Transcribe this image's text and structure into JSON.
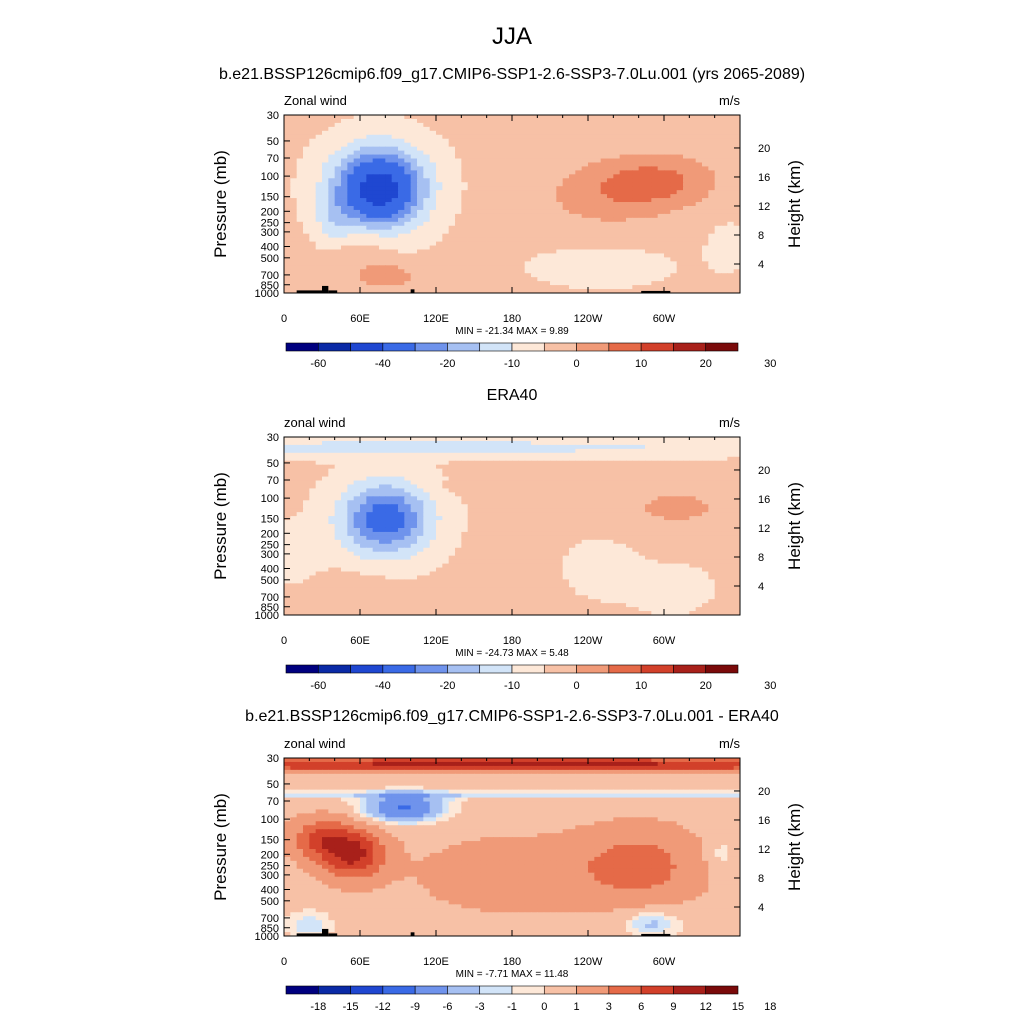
{
  "page": {
    "season": "JJA",
    "subtitle": "b.e21.BSSP126cmip6.f09_g17.CMIP6-SSP1-2.6-SSP3-7.0Lu.001 (yrs 2065-2089)"
  },
  "colors": {
    "model_palette": [
      "#00007f",
      "#0a2aa6",
      "#1f47d1",
      "#3a6ae6",
      "#6f93ec",
      "#a6c0f2",
      "#d2e4f8",
      "#fde8d8",
      "#f7c1a6",
      "#f09a78",
      "#e56a48",
      "#d2402a",
      "#a8201a",
      "#7a0a0a"
    ],
    "diff_palette": [
      "#00007f",
      "#0a2aa6",
      "#1f47d1",
      "#3a6ae6",
      "#6f93ec",
      "#a6c0f2",
      "#d2e4f8",
      "#fde8d8",
      "#f7c1a6",
      "#f09a78",
      "#e56a48",
      "#d2402a",
      "#a8201a",
      "#7a0a0a"
    ],
    "terrain": "#000000"
  },
  "chart_data": [
    {
      "type": "heatmap",
      "panel_title": "",
      "left_label": "Zonal wind",
      "right_label": "m/s",
      "ylabel": "Pressure (mb)",
      "y2label": "Height (km)",
      "x_ticks": [
        "0",
        "60E",
        "120E",
        "180",
        "120W",
        "60W"
      ],
      "x_range": [
        0,
        360
      ],
      "y_ticks": [
        "30",
        "50",
        "70",
        "100",
        "150",
        "200",
        "250",
        "300",
        "400",
        "500",
        "700",
        "850",
        "1000"
      ],
      "y_tick_values": [
        30,
        50,
        70,
        100,
        150,
        200,
        250,
        300,
        400,
        500,
        700,
        850,
        1000
      ],
      "y_range": [
        1000,
        30
      ],
      "y_scale": "log",
      "y2_ticks": [
        "20",
        "16",
        "12",
        "8",
        "4"
      ],
      "y2_tick_values": [
        20,
        16,
        12,
        8,
        4
      ],
      "stats": "MIN = -21.34  MAX =   9.89",
      "colorbar_levels": [
        -70,
        -60,
        -50,
        -40,
        -30,
        -20,
        -15,
        -10,
        -5,
        0,
        5,
        10,
        15,
        20,
        25,
        30
      ],
      "colorbar_labels": [
        "-60",
        "-40",
        "-20",
        "-10",
        "0",
        "10",
        "20",
        "30"
      ],
      "background_value": 1,
      "features": [
        {
          "lon": 75,
          "p": 120,
          "value": -21.34,
          "extent_lon": 48,
          "extent_p": 1.0
        },
        {
          "lon": 75,
          "p": 140,
          "value": -15,
          "extent_lon": 40,
          "extent_p": 0.9
        },
        {
          "lon": 40,
          "p": 260,
          "value": -6,
          "extent_lon": 20,
          "extent_p": 0.6
        },
        {
          "lon": 295,
          "p": 110,
          "value": 9.89,
          "extent_lon": 60,
          "extent_p": 0.7
        },
        {
          "lon": 250,
          "p": 150,
          "value": 6,
          "extent_lon": 65,
          "extent_p": 0.8
        },
        {
          "lon": 80,
          "p": 720,
          "value": 8,
          "extent_lon": 30,
          "extent_p": 0.3
        },
        {
          "lon": 60,
          "p": 400,
          "value": 4,
          "extent_lon": 35,
          "extent_p": 0.6
        },
        {
          "lon": 250,
          "p": 600,
          "value": -3,
          "extent_lon": 70,
          "extent_p": 0.5
        },
        {
          "lon": 350,
          "p": 400,
          "value": -3,
          "extent_lon": 20,
          "extent_p": 0.6
        }
      ],
      "terrain": [
        [
          10,
          30,
          1000,
          950
        ],
        [
          30,
          35,
          1000,
          870
        ],
        [
          35,
          42,
          1000,
          950
        ],
        [
          100,
          103,
          1000,
          930
        ],
        [
          282,
          305,
          1000,
          960
        ]
      ]
    },
    {
      "type": "heatmap",
      "panel_title": "ERA40",
      "left_label": "zonal wind",
      "right_label": "m/s",
      "ylabel": "Pressure (mb)",
      "y2label": "Height (km)",
      "x_ticks": [
        "0",
        "60E",
        "120E",
        "180",
        "120W",
        "60W"
      ],
      "x_range": [
        0,
        360
      ],
      "y_ticks": [
        "30",
        "50",
        "70",
        "100",
        "150",
        "200",
        "250",
        "300",
        "400",
        "500",
        "700",
        "850",
        "1000"
      ],
      "y_tick_values": [
        30,
        50,
        70,
        100,
        150,
        200,
        250,
        300,
        400,
        500,
        700,
        850,
        1000
      ],
      "y_range": [
        1000,
        30
      ],
      "y_scale": "log",
      "y2_ticks": [
        "20",
        "16",
        "12",
        "8",
        "4"
      ],
      "y2_tick_values": [
        20,
        16,
        12,
        8,
        4
      ],
      "stats": "MIN = -24.73  MAX =   5.48",
      "colorbar_levels": [
        -70,
        -60,
        -50,
        -40,
        -30,
        -20,
        -15,
        -10,
        -5,
        0,
        5,
        10,
        15,
        20,
        25,
        30
      ],
      "colorbar_labels": [
        "-60",
        "-40",
        "-20",
        "-10",
        "0",
        "10",
        "20",
        "30"
      ],
      "background_value": 1,
      "features": [
        {
          "lon": 80,
          "p": 150,
          "value": -24.73,
          "extent_lon": 45,
          "extent_p": 0.9
        },
        {
          "lon": 30,
          "p": 38,
          "value": -4,
          "extent_lon": 400,
          "extent_p": 0.25
        },
        {
          "lon": 180,
          "p": 36,
          "value": -4,
          "extent_lon": 400,
          "extent_p": 0.22
        },
        {
          "lon": 250,
          "p": 400,
          "value": -3,
          "extent_lon": 35,
          "extent_p": 0.7
        },
        {
          "lon": 305,
          "p": 600,
          "value": -3,
          "extent_lon": 40,
          "extent_p": 0.6
        },
        {
          "lon": 10,
          "p": 300,
          "value": -3,
          "extent_lon": 25,
          "extent_p": 0.7
        },
        {
          "lon": 310,
          "p": 120,
          "value": 5.48,
          "extent_lon": 60,
          "extent_p": 0.6
        },
        {
          "lon": 60,
          "p": 700,
          "value": 4,
          "extent_lon": 35,
          "extent_p": 0.5
        },
        {
          "lon": 150,
          "p": 80,
          "value": 3,
          "extent_lon": 45,
          "extent_p": 0.12
        }
      ],
      "terrain": []
    },
    {
      "type": "heatmap",
      "panel_title": "b.e21.BSSP126cmip6.f09_g17.CMIP6-SSP1-2.6-SSP3-7.0Lu.001 - ERA40",
      "left_label": "zonal wind",
      "right_label": "m/s",
      "ylabel": "Pressure (mb)",
      "y2label": "Height (km)",
      "x_ticks": [
        "0",
        "60E",
        "120E",
        "180",
        "120W",
        "60W"
      ],
      "x_range": [
        0,
        360
      ],
      "y_ticks": [
        "30",
        "50",
        "70",
        "100",
        "150",
        "200",
        "250",
        "300",
        "400",
        "500",
        "700",
        "850",
        "1000"
      ],
      "y_tick_values": [
        30,
        50,
        70,
        100,
        150,
        200,
        250,
        300,
        400,
        500,
        700,
        850,
        1000
      ],
      "y_range": [
        1000,
        30
      ],
      "y_scale": "log",
      "y2_ticks": [
        "20",
        "16",
        "12",
        "8",
        "4"
      ],
      "y2_tick_values": [
        20,
        16,
        12,
        8,
        4
      ],
      "stats": "MIN =  -7.71  MAX =  11.48",
      "colorbar_levels": [
        -21,
        -18,
        -15,
        -12,
        -9,
        -6,
        -3,
        -1,
        0,
        1,
        3,
        6,
        9,
        12,
        15,
        18,
        21
      ],
      "colorbar_labels": [
        "-18",
        "-15",
        "-12",
        "-9",
        "-6",
        "-3",
        "-1",
        "0",
        "1",
        "3",
        "6",
        "9",
        "12",
        "15",
        "18"
      ],
      "background_value": 2,
      "features": [
        {
          "lon": 180,
          "p": 34,
          "value": 11.48,
          "extent_lon": 500,
          "extent_p": 0.18
        },
        {
          "lon": 180,
          "p": 62,
          "value": -2,
          "extent_lon": 500,
          "extent_p": 0.1
        },
        {
          "lon": 95,
          "p": 80,
          "value": -7.71,
          "extent_lon": 40,
          "extent_p": 0.35
        },
        {
          "lon": 55,
          "p": 200,
          "value": 11,
          "extent_lon": 30,
          "extent_p": 0.6
        },
        {
          "lon": 30,
          "p": 150,
          "value": 8,
          "extent_lon": 30,
          "extent_p": 0.5
        },
        {
          "lon": 280,
          "p": 250,
          "value": 6,
          "extent_lon": 60,
          "extent_p": 0.9
        },
        {
          "lon": 180,
          "p": 300,
          "value": 3,
          "extent_lon": 100,
          "extent_p": 1.0
        },
        {
          "lon": 290,
          "p": 780,
          "value": -3,
          "extent_lon": 30,
          "extent_p": 0.35
        },
        {
          "lon": 20,
          "p": 800,
          "value": -2,
          "extent_lon": 25,
          "extent_p": 0.4
        },
        {
          "lon": 345,
          "p": 200,
          "value": -1.5,
          "extent_lon": 15,
          "extent_p": 0.4
        }
      ],
      "terrain": [
        [
          10,
          30,
          1000,
          950
        ],
        [
          30,
          35,
          1000,
          870
        ],
        [
          35,
          42,
          1000,
          950
        ],
        [
          100,
          103,
          1000,
          930
        ],
        [
          282,
          305,
          1000,
          960
        ]
      ]
    }
  ]
}
